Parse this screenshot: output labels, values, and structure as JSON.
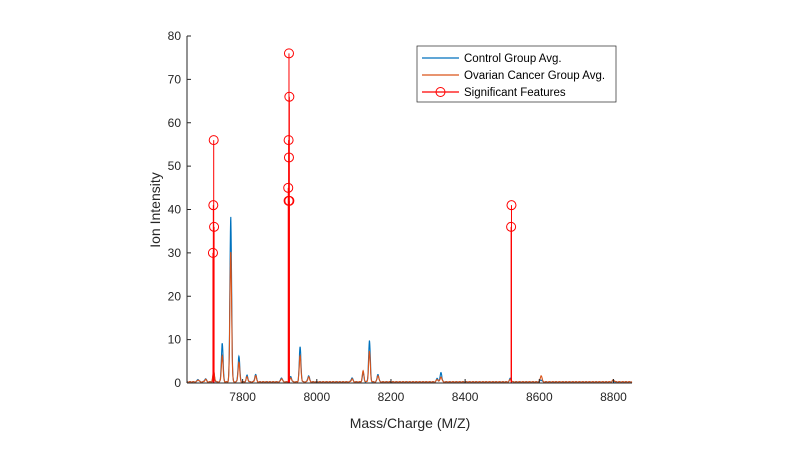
{
  "chart_data": {
    "type": "line",
    "title": "",
    "xlabel": "Mass/Charge (M/Z)",
    "ylabel": "Ion Intensity",
    "xlim": [
      7650,
      8850
    ],
    "ylim": [
      0,
      80
    ],
    "xticks": [
      7800,
      8000,
      8200,
      8400,
      8600,
      8800
    ],
    "yticks": [
      0,
      10,
      20,
      30,
      40,
      50,
      60,
      70,
      80
    ],
    "grid": false,
    "legend_placement": "top-right",
    "series": [
      {
        "name": "Control Group Avg.",
        "color": "#0072BD",
        "peaks": [
          [
            7680,
            0.6
          ],
          [
            7700,
            0.8
          ],
          [
            7722,
            2
          ],
          [
            7745,
            9
          ],
          [
            7768,
            38
          ],
          [
            7790,
            6
          ],
          [
            7812,
            1.5
          ],
          [
            7835,
            1.8
          ],
          [
            7905,
            1
          ],
          [
            7930,
            1.2
          ],
          [
            7955,
            8
          ],
          [
            7978,
            1.5
          ],
          [
            8095,
            1
          ],
          [
            8125,
            2
          ],
          [
            8142,
            9.5
          ],
          [
            8165,
            1.8
          ],
          [
            8325,
            0.8
          ],
          [
            8335,
            2.2
          ],
          [
            8522,
            0.8
          ],
          [
            8605,
            0.5
          ],
          [
            8800,
            0.4
          ]
        ]
      },
      {
        "name": "Ovarian Cancer Group Avg.",
        "color": "#D95319",
        "peaks": [
          [
            7680,
            0.5
          ],
          [
            7700,
            0.6
          ],
          [
            7722,
            2.5
          ],
          [
            7745,
            6
          ],
          [
            7768,
            30
          ],
          [
            7790,
            4.5
          ],
          [
            7812,
            1.2
          ],
          [
            7835,
            1.4
          ],
          [
            7905,
            0.8
          ],
          [
            7930,
            1
          ],
          [
            7955,
            6
          ],
          [
            7978,
            1.2
          ],
          [
            8095,
            0.7
          ],
          [
            8125,
            2.5
          ],
          [
            8142,
            7
          ],
          [
            8165,
            1.5
          ],
          [
            8325,
            0.6
          ],
          [
            8335,
            1.2
          ],
          [
            8522,
            0.6
          ],
          [
            8605,
            1.5
          ],
          [
            8800,
            0.5
          ]
        ]
      },
      {
        "name": "Significant Features",
        "color": "#FF0000",
        "type": "stem",
        "points": [
          [
            7722,
            56
          ],
          [
            7721,
            41
          ],
          [
            7723,
            36
          ],
          [
            7720,
            30
          ],
          [
            7925,
            76
          ],
          [
            7926,
            66
          ],
          [
            7924,
            56
          ],
          [
            7925,
            52
          ],
          [
            7923,
            45
          ],
          [
            7924,
            42
          ],
          [
            7926,
            42
          ],
          [
            8525,
            41
          ],
          [
            8524,
            36
          ]
        ]
      }
    ]
  }
}
